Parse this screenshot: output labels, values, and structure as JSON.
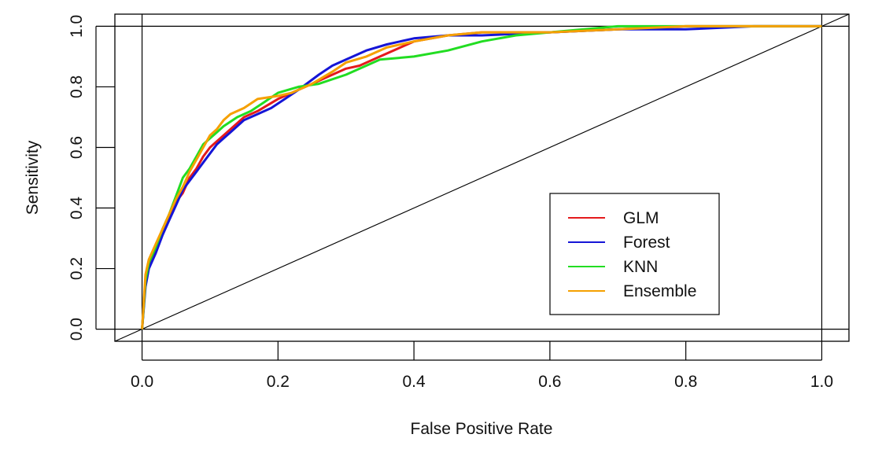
{
  "chart_data": {
    "type": "line",
    "title": "",
    "xlabel": "False Positive Rate",
    "ylabel": "Sensitivity",
    "xlim": [
      -0.04,
      1.04
    ],
    "ylim": [
      -0.04,
      1.04
    ],
    "x_ticks": [
      "0.0",
      "0.2",
      "0.4",
      "0.6",
      "0.8",
      "1.0"
    ],
    "y_ticks": [
      "0.0",
      "0.2",
      "0.4",
      "0.6",
      "0.8",
      "1.0"
    ],
    "grid": false,
    "legend_position": "bottom-right",
    "reference_lines": {
      "horizontal": [
        0,
        1
      ],
      "vertical": [
        0,
        1
      ],
      "diagonal": {
        "x": [
          0,
          1
        ],
        "y": [
          0,
          1
        ],
        "color": "#000000"
      }
    },
    "series": [
      {
        "name": "GLM",
        "color": "#e41a1c",
        "x": [
          0,
          0.005,
          0.01,
          0.02,
          0.03,
          0.04,
          0.05,
          0.06,
          0.07,
          0.08,
          0.09,
          0.1,
          0.11,
          0.12,
          0.13,
          0.15,
          0.17,
          0.2,
          0.22,
          0.25,
          0.28,
          0.3,
          0.32,
          0.35,
          0.38,
          0.4,
          0.45,
          0.5,
          0.6,
          0.7,
          0.8,
          0.9,
          1.0
        ],
        "y": [
          0,
          0.16,
          0.21,
          0.26,
          0.32,
          0.37,
          0.42,
          0.45,
          0.5,
          0.53,
          0.57,
          0.6,
          0.62,
          0.64,
          0.66,
          0.7,
          0.72,
          0.76,
          0.78,
          0.81,
          0.84,
          0.86,
          0.87,
          0.9,
          0.93,
          0.95,
          0.97,
          0.98,
          0.98,
          0.99,
          1.0,
          1.0,
          1.0
        ]
      },
      {
        "name": "Forest",
        "color": "#1515d6",
        "x": [
          0,
          0.005,
          0.01,
          0.02,
          0.03,
          0.04,
          0.05,
          0.06,
          0.07,
          0.08,
          0.09,
          0.1,
          0.11,
          0.12,
          0.13,
          0.15,
          0.17,
          0.19,
          0.21,
          0.23,
          0.26,
          0.28,
          0.3,
          0.33,
          0.36,
          0.4,
          0.45,
          0.5,
          0.6,
          0.7,
          0.8,
          0.9,
          1.0
        ],
        "y": [
          0,
          0.14,
          0.2,
          0.25,
          0.31,
          0.36,
          0.41,
          0.46,
          0.49,
          0.52,
          0.55,
          0.58,
          0.61,
          0.63,
          0.65,
          0.69,
          0.71,
          0.73,
          0.76,
          0.79,
          0.84,
          0.87,
          0.89,
          0.92,
          0.94,
          0.96,
          0.97,
          0.97,
          0.98,
          0.99,
          0.99,
          1.0,
          1.0
        ]
      },
      {
        "name": "KNN",
        "color": "#22dd22",
        "x": [
          0,
          0.005,
          0.01,
          0.02,
          0.03,
          0.04,
          0.05,
          0.06,
          0.07,
          0.08,
          0.09,
          0.1,
          0.11,
          0.12,
          0.14,
          0.16,
          0.18,
          0.2,
          0.23,
          0.26,
          0.3,
          0.35,
          0.4,
          0.45,
          0.5,
          0.55,
          0.6,
          0.65,
          0.7,
          0.8,
          0.9,
          1.0
        ],
        "y": [
          0,
          0.16,
          0.22,
          0.27,
          0.33,
          0.38,
          0.44,
          0.5,
          0.53,
          0.57,
          0.61,
          0.63,
          0.65,
          0.67,
          0.7,
          0.72,
          0.75,
          0.78,
          0.8,
          0.81,
          0.84,
          0.89,
          0.9,
          0.92,
          0.95,
          0.97,
          0.98,
          0.99,
          1.0,
          1.0,
          1.0,
          1.0
        ]
      },
      {
        "name": "Ensemble",
        "color": "#f5a000",
        "x": [
          0,
          0.005,
          0.01,
          0.02,
          0.03,
          0.04,
          0.05,
          0.06,
          0.07,
          0.08,
          0.09,
          0.1,
          0.11,
          0.12,
          0.13,
          0.15,
          0.17,
          0.2,
          0.22,
          0.25,
          0.28,
          0.3,
          0.33,
          0.36,
          0.4,
          0.45,
          0.5,
          0.6,
          0.7,
          0.8,
          0.9,
          1.0
        ],
        "y": [
          0,
          0.18,
          0.23,
          0.28,
          0.33,
          0.38,
          0.43,
          0.47,
          0.52,
          0.56,
          0.6,
          0.64,
          0.66,
          0.69,
          0.71,
          0.73,
          0.76,
          0.77,
          0.78,
          0.81,
          0.85,
          0.88,
          0.9,
          0.93,
          0.95,
          0.97,
          0.98,
          0.98,
          0.99,
          1.0,
          1.0,
          1.0
        ]
      }
    ]
  }
}
